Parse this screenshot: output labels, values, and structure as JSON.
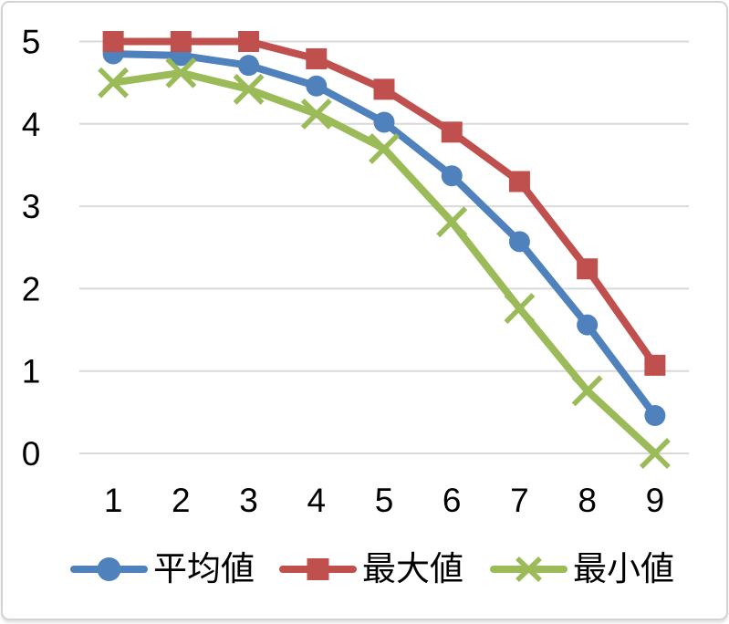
{
  "chart_data": {
    "type": "line",
    "title": "",
    "xlabel": "",
    "ylabel": "",
    "categories": [
      1,
      2,
      3,
      4,
      5,
      6,
      7,
      8,
      9
    ],
    "yticks": [
      0,
      1,
      2,
      3,
      4,
      5
    ],
    "ylim": [
      0,
      5.5
    ],
    "grid": "horizontal-only",
    "gridline_color": "#D9D9D9",
    "text_color": "#000000",
    "legend_position": "bottom",
    "series": [
      {
        "id": "average",
        "name": "平均値",
        "marker": "circle",
        "color": "#4F81BD",
        "values": [
          4.85,
          4.83,
          4.71,
          4.46,
          4.02,
          3.37,
          2.57,
          1.56,
          0.46
        ]
      },
      {
        "id": "max",
        "name": "最大値",
        "marker": "square",
        "color": "#C0504D",
        "values": [
          5.0,
          5.0,
          5.0,
          4.79,
          4.42,
          3.9,
          3.3,
          2.24,
          1.07
        ]
      },
      {
        "id": "min",
        "name": "最小値",
        "marker": "x",
        "color": "#9BBB59",
        "values": [
          4.5,
          4.62,
          4.42,
          4.12,
          3.7,
          2.81,
          1.76,
          0.76,
          0.0
        ]
      }
    ]
  }
}
